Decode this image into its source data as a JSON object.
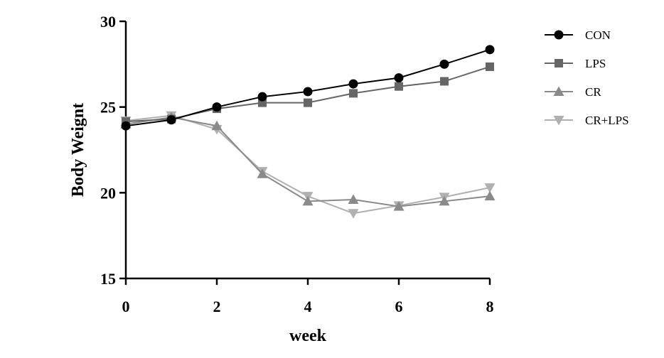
{
  "chart_data": {
    "type": "line",
    "title": "",
    "xlabel": "week",
    "ylabel": "Body Weignt",
    "xlim": [
      0,
      8
    ],
    "ylim": [
      15,
      30
    ],
    "x_ticks": [
      0,
      2,
      4,
      6,
      8
    ],
    "y_ticks": [
      15,
      20,
      25,
      30
    ],
    "grid": false,
    "legend_position": "right",
    "x": [
      0,
      1,
      2,
      3,
      4,
      5,
      6,
      7,
      8
    ],
    "series": [
      {
        "name": "CON",
        "marker": "circle",
        "color": "#000000",
        "values": [
          23.9,
          24.25,
          25.0,
          25.6,
          25.9,
          26.35,
          26.7,
          27.5,
          28.35
        ]
      },
      {
        "name": "LPS",
        "marker": "square",
        "color": "#666666",
        "values": [
          24.15,
          24.3,
          24.9,
          25.25,
          25.25,
          25.8,
          26.2,
          26.5,
          27.35
        ]
      },
      {
        "name": "CR",
        "marker": "triangle-up",
        "color": "#8a8a8a",
        "values": [
          24.0,
          24.4,
          23.9,
          21.1,
          19.5,
          19.6,
          19.2,
          19.5,
          19.8
        ]
      },
      {
        "name": "CR+LPS",
        "marker": "triangle-down",
        "color": "#b0b0b0",
        "values": [
          24.2,
          24.5,
          23.7,
          21.25,
          19.8,
          18.8,
          19.25,
          19.75,
          20.3
        ]
      }
    ]
  }
}
